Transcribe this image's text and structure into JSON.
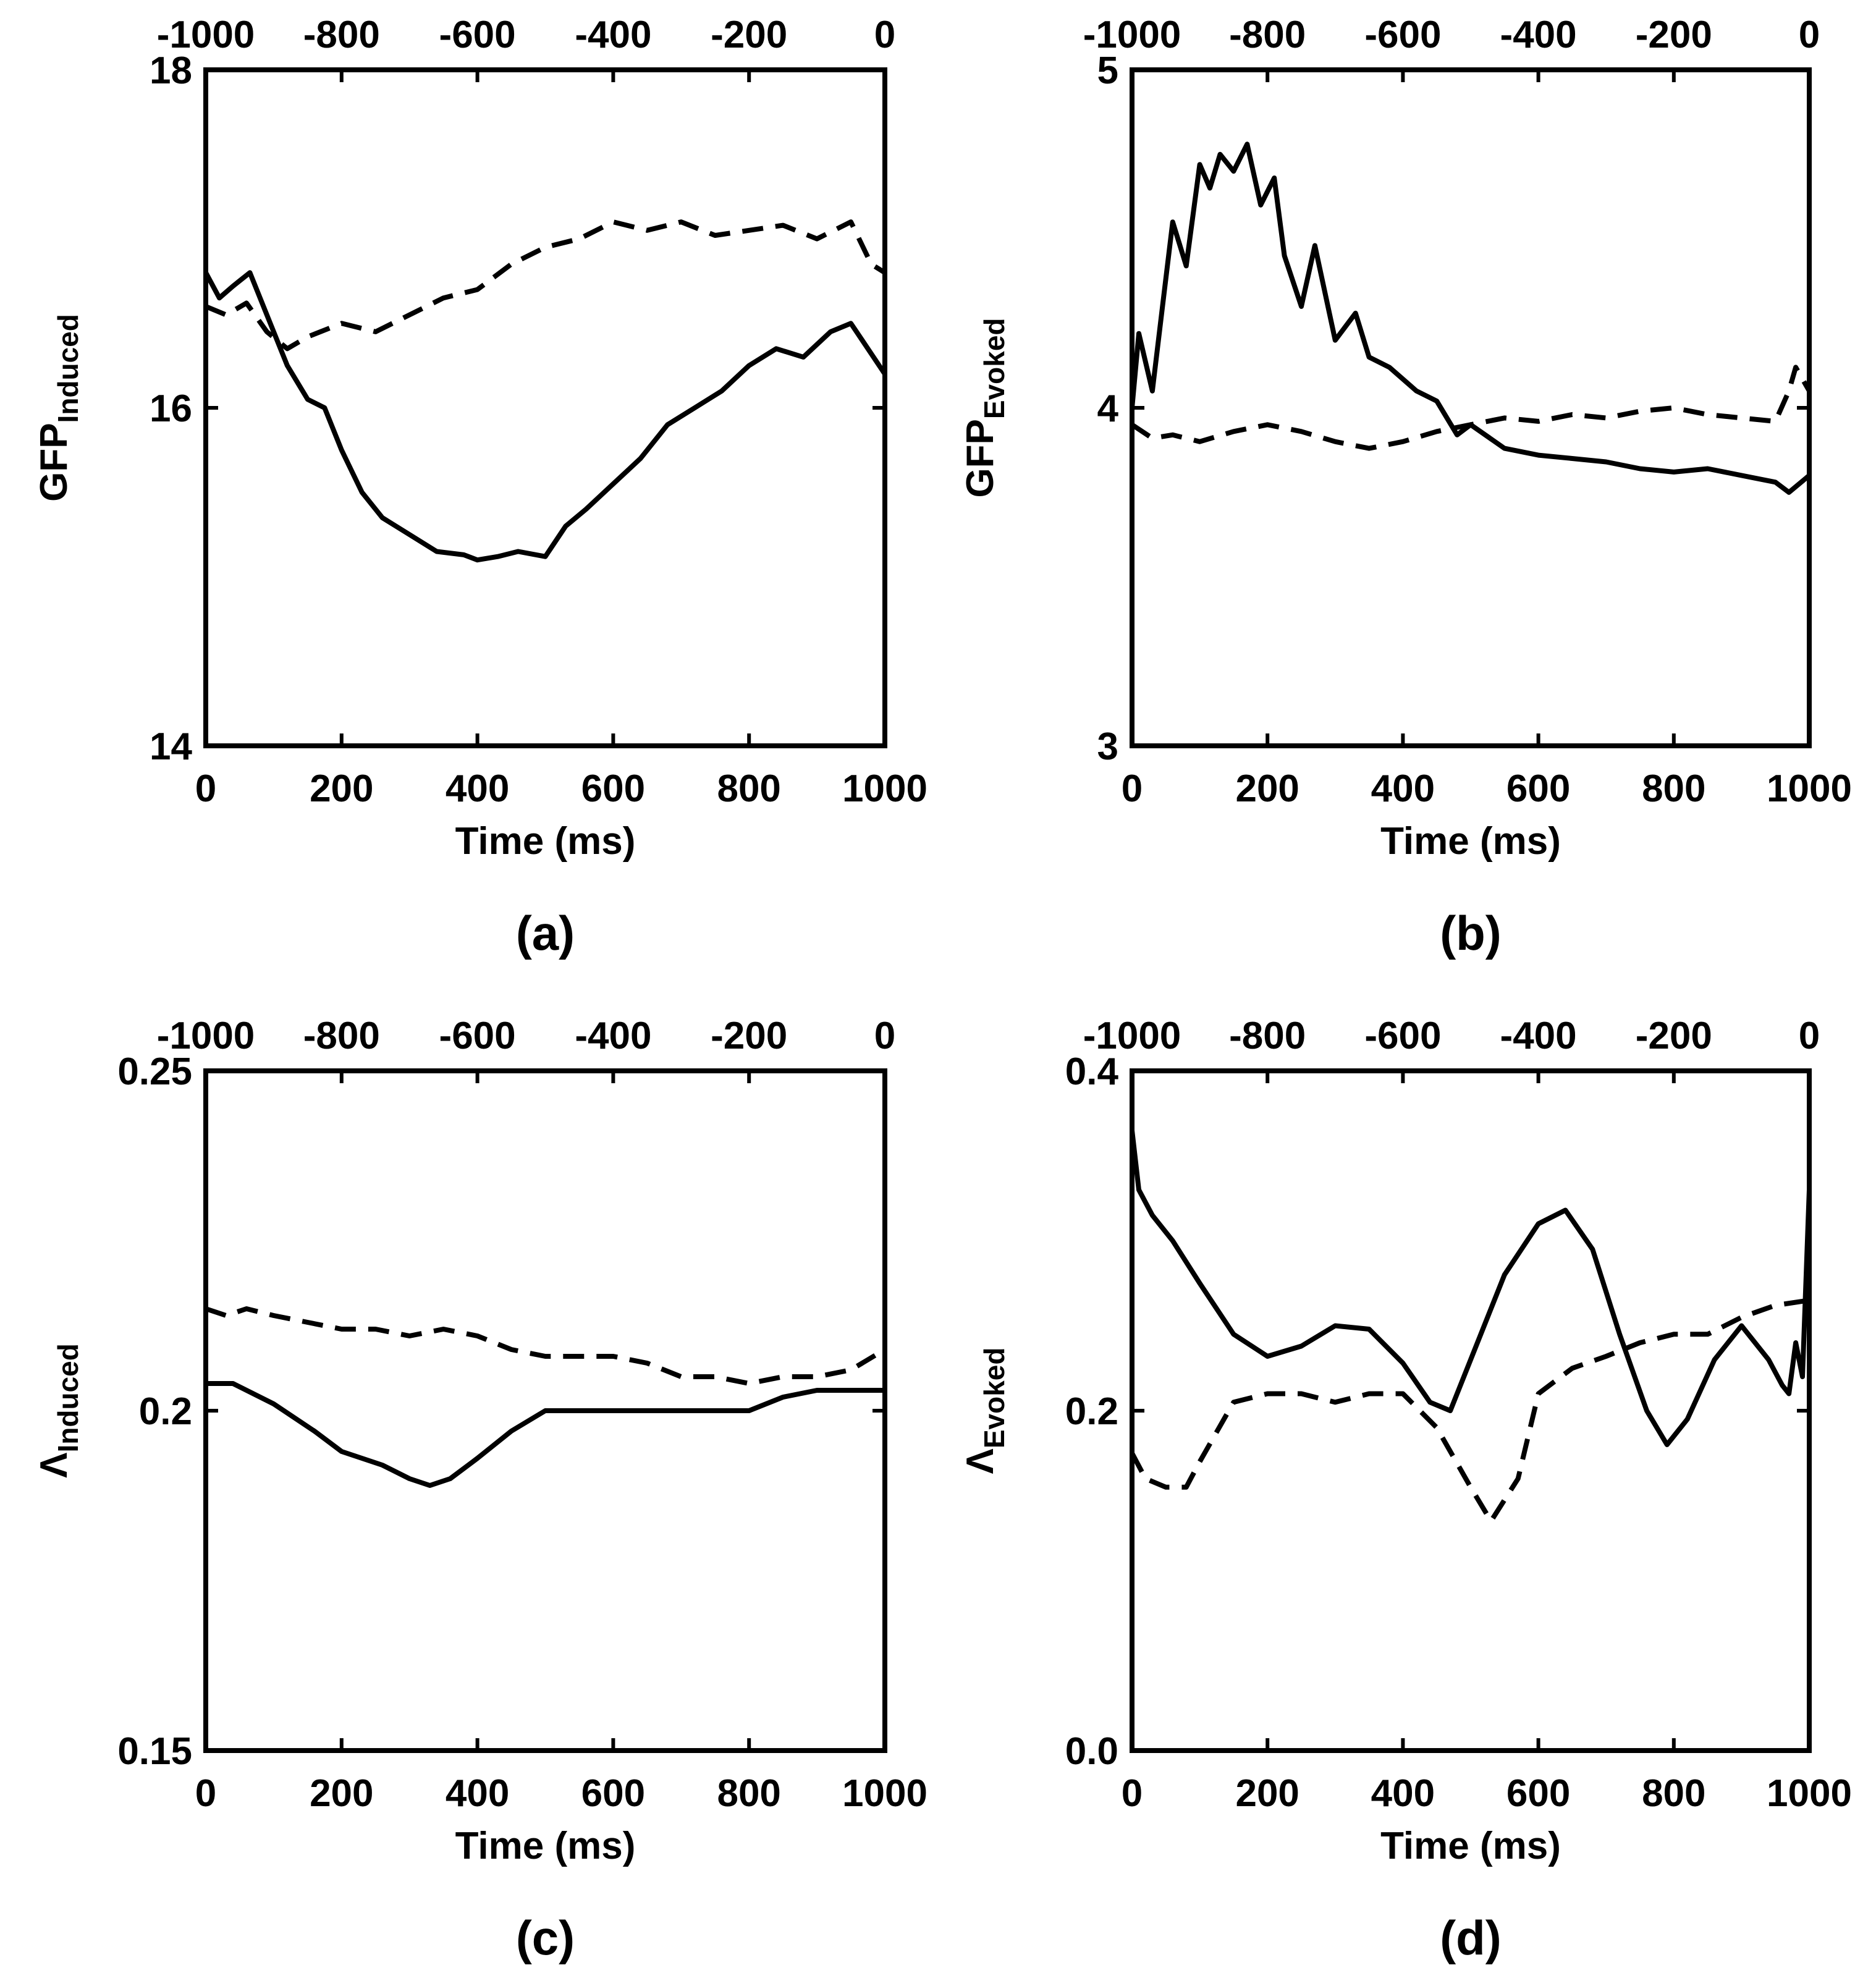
{
  "figure": {
    "background": "#ffffff",
    "line_color": "#000000"
  },
  "chart_data": [
    {
      "type": "line",
      "panel_label": "(a)",
      "xlabel": "Time (ms)",
      "ylabel": {
        "main": "GFP",
        "sub": "Induced"
      },
      "xlim": [
        0,
        1000
      ],
      "ylim": [
        14,
        18
      ],
      "x_ticks": [
        0,
        200,
        400,
        600,
        800,
        1000
      ],
      "x_tick_labels": [
        "0",
        "200",
        "400",
        "600",
        "800",
        "1000"
      ],
      "top_x_tick_labels": [
        "-1000",
        "-800",
        "-600",
        "-400",
        "-200",
        "0"
      ],
      "y_ticks": [
        14,
        16,
        18
      ],
      "y_tick_labels": [
        "14",
        "16",
        "18"
      ],
      "grid": false,
      "series": [
        {
          "name": "solid",
          "style": "solid",
          "x": [
            0,
            20,
            40,
            65,
            90,
            120,
            150,
            175,
            200,
            230,
            260,
            300,
            340,
            380,
            400,
            430,
            460,
            500,
            530,
            560,
            600,
            640,
            680,
            720,
            760,
            800,
            840,
            880,
            920,
            950,
            1000
          ],
          "y": [
            16.8,
            16.65,
            16.72,
            16.8,
            16.55,
            16.25,
            16.05,
            16.0,
            15.75,
            15.5,
            15.35,
            15.25,
            15.15,
            15.13,
            15.1,
            15.12,
            15.15,
            15.12,
            15.3,
            15.4,
            15.55,
            15.7,
            15.9,
            16.0,
            16.1,
            16.25,
            16.35,
            16.3,
            16.45,
            16.5,
            16.2
          ]
        },
        {
          "name": "dashed",
          "style": "dashed",
          "x": [
            0,
            30,
            60,
            90,
            120,
            150,
            200,
            250,
            300,
            350,
            400,
            450,
            500,
            550,
            600,
            650,
            700,
            750,
            800,
            850,
            900,
            950,
            980,
            1000
          ],
          "y": [
            16.6,
            16.55,
            16.62,
            16.45,
            16.35,
            16.42,
            16.5,
            16.45,
            16.55,
            16.65,
            16.7,
            16.85,
            16.95,
            17.0,
            17.1,
            17.05,
            17.1,
            17.02,
            17.05,
            17.08,
            17.0,
            17.1,
            16.85,
            16.8
          ]
        }
      ]
    },
    {
      "type": "line",
      "panel_label": "(b)",
      "xlabel": "Time (ms)",
      "ylabel": {
        "main": "GFP",
        "sub": "Evoked"
      },
      "xlim": [
        0,
        1000
      ],
      "ylim": [
        3,
        5
      ],
      "x_ticks": [
        0,
        200,
        400,
        600,
        800,
        1000
      ],
      "x_tick_labels": [
        "0",
        "200",
        "400",
        "600",
        "800",
        "1000"
      ],
      "top_x_tick_labels": [
        "-1000",
        "-800",
        "-600",
        "-400",
        "-200",
        "0"
      ],
      "y_ticks": [
        3,
        4,
        5
      ],
      "y_tick_labels": [
        "3",
        "4",
        "5"
      ],
      "grid": false,
      "series": [
        {
          "name": "solid",
          "style": "solid",
          "x": [
            0,
            10,
            30,
            45,
            60,
            80,
            100,
            115,
            130,
            150,
            170,
            190,
            210,
            225,
            250,
            270,
            300,
            330,
            350,
            380,
            420,
            450,
            480,
            500,
            550,
            600,
            650,
            700,
            750,
            800,
            850,
            900,
            950,
            970,
            1000
          ],
          "y": [
            4.0,
            4.22,
            4.05,
            4.3,
            4.55,
            4.42,
            4.72,
            4.65,
            4.75,
            4.7,
            4.78,
            4.6,
            4.68,
            4.45,
            4.3,
            4.48,
            4.2,
            4.28,
            4.15,
            4.12,
            4.05,
            4.02,
            3.92,
            3.95,
            3.88,
            3.86,
            3.85,
            3.84,
            3.82,
            3.81,
            3.82,
            3.8,
            3.78,
            3.75,
            3.8
          ]
        },
        {
          "name": "dashed",
          "style": "dashed",
          "x": [
            0,
            30,
            60,
            100,
            150,
            200,
            250,
            300,
            350,
            400,
            450,
            500,
            550,
            600,
            650,
            700,
            750,
            800,
            850,
            900,
            950,
            970,
            980,
            1000
          ],
          "y": [
            3.95,
            3.91,
            3.92,
            3.9,
            3.93,
            3.95,
            3.93,
            3.9,
            3.88,
            3.9,
            3.93,
            3.95,
            3.97,
            3.96,
            3.98,
            3.97,
            3.99,
            4.0,
            3.98,
            3.97,
            3.96,
            4.05,
            4.12,
            4.05
          ]
        }
      ]
    },
    {
      "type": "line",
      "panel_label": "(c)",
      "xlabel": "Time (ms)",
      "ylabel": {
        "main": "Λ",
        "sub": "Induced"
      },
      "xlim": [
        0,
        1000
      ],
      "ylim": [
        0.15,
        0.25
      ],
      "x_ticks": [
        0,
        200,
        400,
        600,
        800,
        1000
      ],
      "x_tick_labels": [
        "0",
        "200",
        "400",
        "600",
        "800",
        "1000"
      ],
      "top_x_tick_labels": [
        "-1000",
        "-800",
        "-600",
        "-400",
        "-200",
        "0"
      ],
      "y_ticks": [
        0.15,
        0.2,
        0.25
      ],
      "y_tick_labels": [
        "0.15",
        "0.2",
        "0.25"
      ],
      "grid": false,
      "series": [
        {
          "name": "solid",
          "style": "solid",
          "x": [
            0,
            40,
            100,
            160,
            200,
            260,
            300,
            330,
            360,
            400,
            450,
            500,
            550,
            600,
            650,
            700,
            750,
            800,
            850,
            900,
            950,
            1000
          ],
          "y": [
            0.204,
            0.204,
            0.201,
            0.197,
            0.194,
            0.192,
            0.19,
            0.189,
            0.19,
            0.193,
            0.197,
            0.2,
            0.2,
            0.2,
            0.2,
            0.2,
            0.2,
            0.2,
            0.202,
            0.203,
            0.203,
            0.203
          ]
        },
        {
          "name": "dashed",
          "style": "dashed",
          "x": [
            0,
            30,
            60,
            100,
            150,
            200,
            250,
            300,
            350,
            400,
            450,
            500,
            550,
            600,
            650,
            700,
            750,
            800,
            850,
            900,
            950,
            1000
          ],
          "y": [
            0.215,
            0.214,
            0.215,
            0.214,
            0.213,
            0.212,
            0.212,
            0.211,
            0.212,
            0.211,
            0.209,
            0.208,
            0.208,
            0.208,
            0.207,
            0.205,
            0.205,
            0.204,
            0.205,
            0.205,
            0.206,
            0.209
          ]
        }
      ]
    },
    {
      "type": "line",
      "panel_label": "(d)",
      "xlabel": "Time (ms)",
      "ylabel": {
        "main": "Λ",
        "sub": "Evoked"
      },
      "xlim": [
        0,
        1000
      ],
      "ylim": [
        0.0,
        0.4
      ],
      "x_ticks": [
        0,
        200,
        400,
        600,
        800,
        1000
      ],
      "x_tick_labels": [
        "0",
        "200",
        "400",
        "600",
        "800",
        "1000"
      ],
      "top_x_tick_labels": [
        "-1000",
        "-800",
        "-600",
        "-400",
        "-200",
        "0"
      ],
      "y_ticks": [
        0.0,
        0.2,
        0.4
      ],
      "y_tick_labels": [
        "0.0",
        "0.2",
        "0.4"
      ],
      "grid": false,
      "series": [
        {
          "name": "solid",
          "style": "solid",
          "x": [
            0,
            10,
            30,
            60,
            100,
            150,
            200,
            250,
            300,
            350,
            400,
            440,
            470,
            500,
            550,
            600,
            640,
            680,
            720,
            760,
            790,
            820,
            860,
            900,
            940,
            960,
            970,
            980,
            990,
            1000
          ],
          "y": [
            0.365,
            0.33,
            0.315,
            0.3,
            0.275,
            0.245,
            0.232,
            0.238,
            0.25,
            0.248,
            0.228,
            0.205,
            0.2,
            0.23,
            0.28,
            0.31,
            0.318,
            0.295,
            0.245,
            0.2,
            0.18,
            0.195,
            0.23,
            0.25,
            0.23,
            0.215,
            0.21,
            0.24,
            0.22,
            0.33
          ]
        },
        {
          "name": "dashed",
          "style": "dashed",
          "x": [
            0,
            20,
            50,
            80,
            100,
            150,
            200,
            250,
            300,
            350,
            400,
            450,
            500,
            530,
            570,
            600,
            650,
            700,
            750,
            800,
            850,
            900,
            950,
            1000
          ],
          "y": [
            0.175,
            0.16,
            0.155,
            0.155,
            0.17,
            0.205,
            0.21,
            0.21,
            0.205,
            0.21,
            0.21,
            0.19,
            0.155,
            0.135,
            0.16,
            0.21,
            0.225,
            0.232,
            0.24,
            0.245,
            0.245,
            0.255,
            0.262,
            0.265
          ]
        }
      ]
    }
  ]
}
